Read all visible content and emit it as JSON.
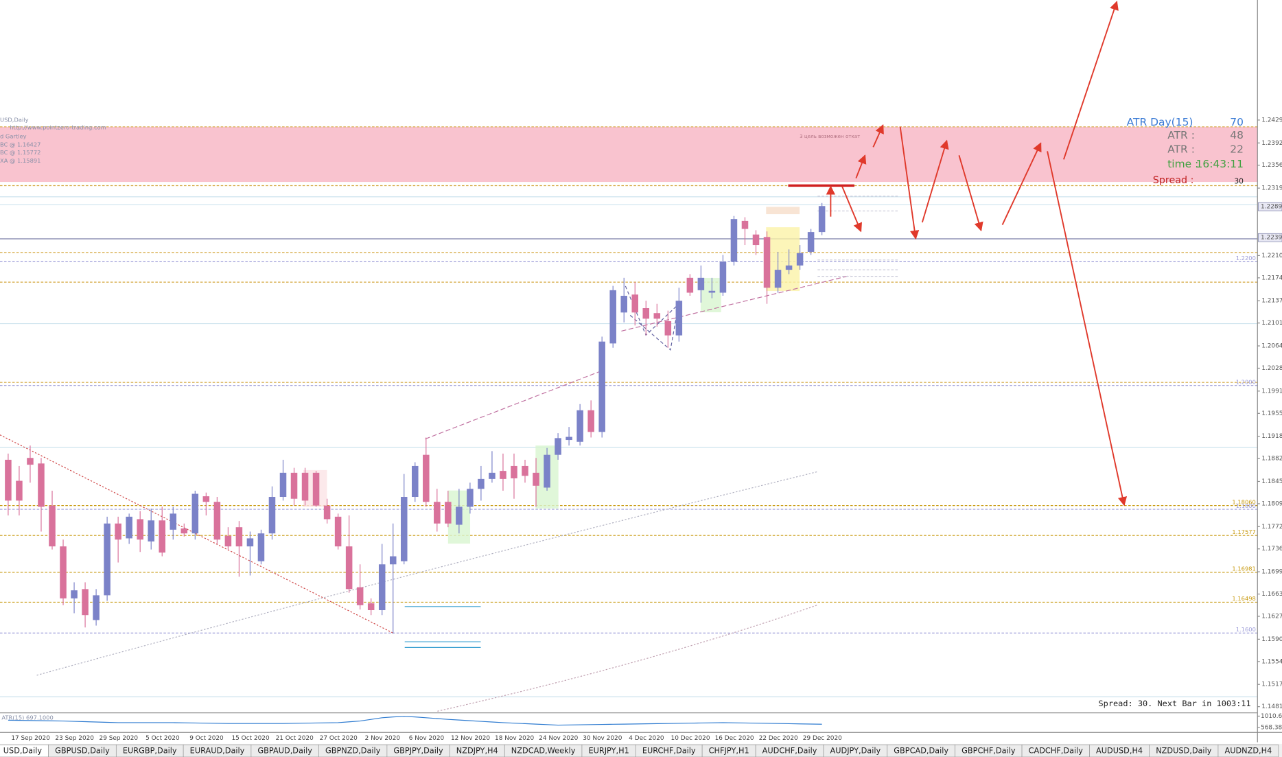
{
  "chart_data": {
    "type": "candlestick",
    "title": "USD,Daily",
    "annotations": [
      "http://www.pointzero-trading.com",
      "d Gartley",
      "BC @ 1.16427",
      "BC @ 1.15772",
      "XA @ 1.15891",
      "3 цель возможен откат"
    ],
    "categories": [
      null,
      "17 Sep 2020",
      null,
      null,
      null,
      "23 Sep 2020",
      null,
      null,
      null,
      "29 Sep 2020",
      null,
      null,
      null,
      "5 Oct 2020",
      null,
      null,
      null,
      "9 Oct 2020",
      null,
      null,
      null,
      "15 Oct 2020",
      null,
      null,
      null,
      "21 Oct 2020",
      null,
      null,
      null,
      "27 Oct 2020",
      null,
      null,
      null,
      "2 Nov 2020",
      null,
      null,
      null,
      "6 Nov 2020",
      null,
      null,
      null,
      "12 Nov 2020",
      null,
      null,
      null,
      "18 Nov 2020",
      null,
      null,
      null,
      "24 Nov 2020",
      null,
      null,
      null,
      "30 Nov 2020",
      null,
      null,
      null,
      "4 Dec 2020",
      null,
      null,
      null,
      "10 Dec 2020",
      null,
      null,
      null,
      "16 Dec 2020",
      null,
      null,
      null,
      "22 Dec 2020",
      null,
      null,
      null,
      "29 Dec 2020",
      null
    ],
    "open": [
      1.188,
      1.1846,
      1.1883,
      1.1874,
      1.1806,
      1.174,
      1.1656,
      1.1671,
      1.1621,
      1.1661,
      1.1777,
      1.1753,
      1.1784,
      1.1748,
      1.1782,
      1.1767,
      1.1769,
      1.1761,
      1.1821,
      1.1812,
      1.1757,
      1.1771,
      1.174,
      1.1716,
      1.1761,
      1.182,
      1.1859,
      1.1859,
      1.1859,
      1.1806,
      1.1788,
      1.174,
      1.1674,
      1.1648,
      1.1637,
      1.1711,
      1.1716,
      1.182,
      1.1888,
      1.1812,
      1.1812,
      1.1775,
      1.1804,
      1.1833,
      1.1849,
      1.1862,
      1.187,
      1.187,
      1.1859,
      1.1835,
      1.1888,
      1.1912,
      1.1909,
      1.196,
      1.1925,
      1.2068,
      1.2118,
      1.2147,
      1.2125,
      1.2117,
      1.2104,
      1.2081,
      1.2174,
      1.2154,
      1.215,
      1.215,
      1.22,
      1.2266,
      1.2244,
      1.224,
      1.2158,
      1.2187,
      1.2194,
      1.2216,
      1.2248
    ],
    "high": [
      1.189,
      1.187,
      1.1903,
      1.1883,
      1.183,
      1.1751,
      1.1682,
      1.1682,
      1.1671,
      1.1788,
      1.1788,
      1.1793,
      1.1797,
      1.1801,
      1.1804,
      1.1804,
      1.1777,
      1.183,
      1.1827,
      1.182,
      1.1771,
      1.1781,
      1.1764,
      1.1767,
      1.1837,
      1.188,
      1.1867,
      1.1867,
      1.1862,
      1.1817,
      1.1793,
      1.179,
      1.1711,
      1.1656,
      1.1744,
      1.1777,
      1.1857,
      1.1876,
      1.1916,
      1.1833,
      1.183,
      1.1833,
      1.1843,
      1.187,
      1.1894,
      1.189,
      1.189,
      1.188,
      1.1883,
      1.1899,
      1.1923,
      1.1933,
      1.197,
      1.1976,
      1.2079,
      1.2161,
      1.2174,
      1.2167,
      1.2137,
      1.2132,
      1.2121,
      1.2158,
      1.218,
      1.2194,
      1.2174,
      1.2211,
      1.2274,
      1.2272,
      1.2251,
      1.2249,
      1.2216,
      1.222,
      1.2227,
      1.2253,
      1.2295
    ],
    "low": [
      1.179,
      1.179,
      1.1843,
      1.1764,
      1.1735,
      1.1645,
      1.1632,
      1.1609,
      1.1612,
      1.1652,
      1.1714,
      1.1744,
      1.1731,
      1.1735,
      1.1724,
      1.1751,
      1.1756,
      1.1751,
      1.179,
      1.1744,
      1.1735,
      1.1691,
      1.1693,
      1.1711,
      1.1751,
      1.1814,
      1.1806,
      1.1806,
      1.1804,
      1.1777,
      1.1735,
      1.1665,
      1.1638,
      1.1629,
      1.1629,
      1.1599,
      1.1711,
      1.1812,
      1.1804,
      1.1764,
      1.1771,
      1.1761,
      1.1793,
      1.1814,
      1.1843,
      1.183,
      1.1817,
      1.1843,
      1.1804,
      1.183,
      1.188,
      1.1903,
      1.1903,
      1.1916,
      1.1916,
      1.2061,
      1.2102,
      1.2097,
      1.2081,
      1.2095,
      1.2061,
      1.2071,
      1.2145,
      1.2134,
      1.2141,
      1.2145,
      1.2194,
      1.2227,
      1.2211,
      1.2132,
      1.215,
      1.218,
      1.2187,
      1.2211,
      1.2243
    ],
    "close": [
      1.1814,
      1.1814,
      1.1872,
      1.1804,
      1.174,
      1.1656,
      1.1669,
      1.1629,
      1.1661,
      1.1777,
      1.1751,
      1.1788,
      1.1751,
      1.1782,
      1.173,
      1.1793,
      1.1761,
      1.1825,
      1.1812,
      1.1751,
      1.174,
      1.174,
      1.1753,
      1.1761,
      1.182,
      1.1859,
      1.1817,
      1.1814,
      1.1806,
      1.1784,
      1.174,
      1.1671,
      1.1645,
      1.1637,
      1.1711,
      1.1724,
      1.182,
      1.187,
      1.1812,
      1.1777,
      1.1777,
      1.1804,
      1.1833,
      1.1849,
      1.1859,
      1.1849,
      1.185,
      1.1854,
      1.1838,
      1.1888,
      1.1915,
      1.1917,
      1.196,
      1.1925,
      1.2071,
      1.2154,
      1.2145,
      1.2118,
      1.2108,
      1.2108,
      1.2081,
      1.2137,
      1.215,
      1.2174,
      1.2153,
      1.22,
      1.2269,
      1.2253,
      1.2227,
      1.2158,
      1.2187,
      1.2194,
      1.2214,
      1.2248,
      1.229
    ],
    "up_color": "#7b82c8",
    "down_color": "#d9729b",
    "ylim": [
      1.1471,
      1.2623
    ],
    "yticks": [
      1.2429,
      1.2392,
      1.2356,
      1.2319,
      {
        "value": 1.221,
        "label": "1.2210"
      },
      1.2174,
      1.2137,
      1.2101,
      1.2064,
      1.2028,
      1.1991,
      1.1955,
      1.1918,
      1.1882,
      1.1845,
      1.1809,
      1.1772,
      1.1736,
      1.1699,
      1.1663,
      1.1627,
      {
        "value": 1.159,
        "label": "1.1590"
      },
      1.1554,
      1.1517,
      1.1481
    ],
    "price_labels": [
      1.2289,
      1.2239
    ],
    "zone": {
      "from": 1.2329,
      "to": 1.2418,
      "color": "#f9c3cf"
    },
    "lines": [
      {
        "value": 1.2418,
        "color": "#d4a53a",
        "dash": true
      },
      {
        "value": 1.2323,
        "color": "#d4a53a",
        "dash": true
      },
      {
        "value": 1.2305,
        "color": "#cde3ee",
        "dash": false
      },
      {
        "value": 1.2292,
        "color": "#cde3ee",
        "dash": false
      },
      {
        "value": 1.2237,
        "color": "#7a7ea8",
        "dash": false
      },
      {
        "value": 1.2215,
        "color": "#d4a53a",
        "dash": true
      },
      {
        "value": 1.2167,
        "color": "#d4a53a",
        "dash": true
      },
      {
        "value": 1.21,
        "color": "#cde3ee",
        "dash": false
      },
      {
        "value": 1.2005,
        "color": "#d4a53a",
        "dash": true
      },
      {
        "value": 1.19,
        "color": "#cde3ee",
        "dash": false
      },
      {
        "value": 1.1497,
        "color": "#cde3ee",
        "dash": false
      }
    ],
    "levels": [
      {
        "value": 1.22,
        "label": "1.2200",
        "color": "#9b9bd8"
      },
      {
        "value": 1.2,
        "label": "1.2000",
        "color": "#9b9bd8"
      },
      {
        "value": 1.1806,
        "label": "1.18060",
        "color": "#c89a10"
      },
      {
        "value": 1.18,
        "label": "1.1800",
        "color": "#9b9bd8"
      },
      {
        "value": 1.17577,
        "label": "1.17577",
        "color": "#c89a10"
      },
      {
        "value": 1.16981,
        "label": "1.16981",
        "color": "#c89a10"
      },
      {
        "value": 1.16498,
        "label": "1.16498",
        "color": "#c89a10"
      },
      {
        "value": 1.16,
        "label": "1.1600",
        "color": "#9b9bd8"
      }
    ],
    "atr": {
      "label": "ATR(15) 697.1000",
      "color": "#2e7bd0",
      "ylim": [
        410,
        1137
      ],
      "yticks": [
        1010.63,
        568.389
      ],
      "values": [
        853,
        847,
        840,
        834,
        827,
        821,
        808,
        796,
        783,
        771,
        758,
        758,
        758,
        758,
        758,
        758,
        752,
        745,
        739,
        732,
        726,
        726,
        726,
        726,
        726,
        726,
        732,
        739,
        745,
        752,
        758,
        790,
        822,
        885,
        948,
        979,
        1000,
        979,
        947,
        916,
        884,
        859,
        834,
        808,
        783,
        758,
        739,
        720,
        701,
        682,
        663,
        669,
        676,
        682,
        689,
        695,
        701,
        707,
        714,
        720,
        726,
        732,
        739,
        745,
        752,
        758,
        752,
        745,
        739,
        732,
        726,
        719,
        711,
        704,
        697.1
      ]
    }
  },
  "indicator_panel": {
    "title": "ATR Day(15)",
    "title_value": 70,
    "rows": [
      {
        "label": "ATR :",
        "value": 48
      },
      {
        "label": "ATR :",
        "value": 22
      },
      {
        "label": "time :",
        "value": "16:43:11"
      },
      {
        "label": "Spread :",
        "value": 30
      }
    ]
  },
  "status_text": "Spread: 30. Next Bar in 1003:11",
  "tabs": [
    "USD,Daily",
    "GBPUSD,Daily",
    "EURGBP,Daily",
    "EURAUD,Daily",
    "GBPAUD,Daily",
    "GBPNZD,Daily",
    "GBPJPY,Daily",
    "NZDJPY,H4",
    "NZDCAD,Weekly",
    "EURJPY,H1",
    "EURCHF,Daily",
    "CHFJPY,H1",
    "AUDCHF,Daily",
    "AUDJPY,Daily",
    "GBPCAD,Daily",
    "GBPCHF,Daily",
    "CADCHF,Daily",
    "AUDUSD,H4",
    "NZDUSD,Daily",
    "AUDNZD,H4"
  ]
}
